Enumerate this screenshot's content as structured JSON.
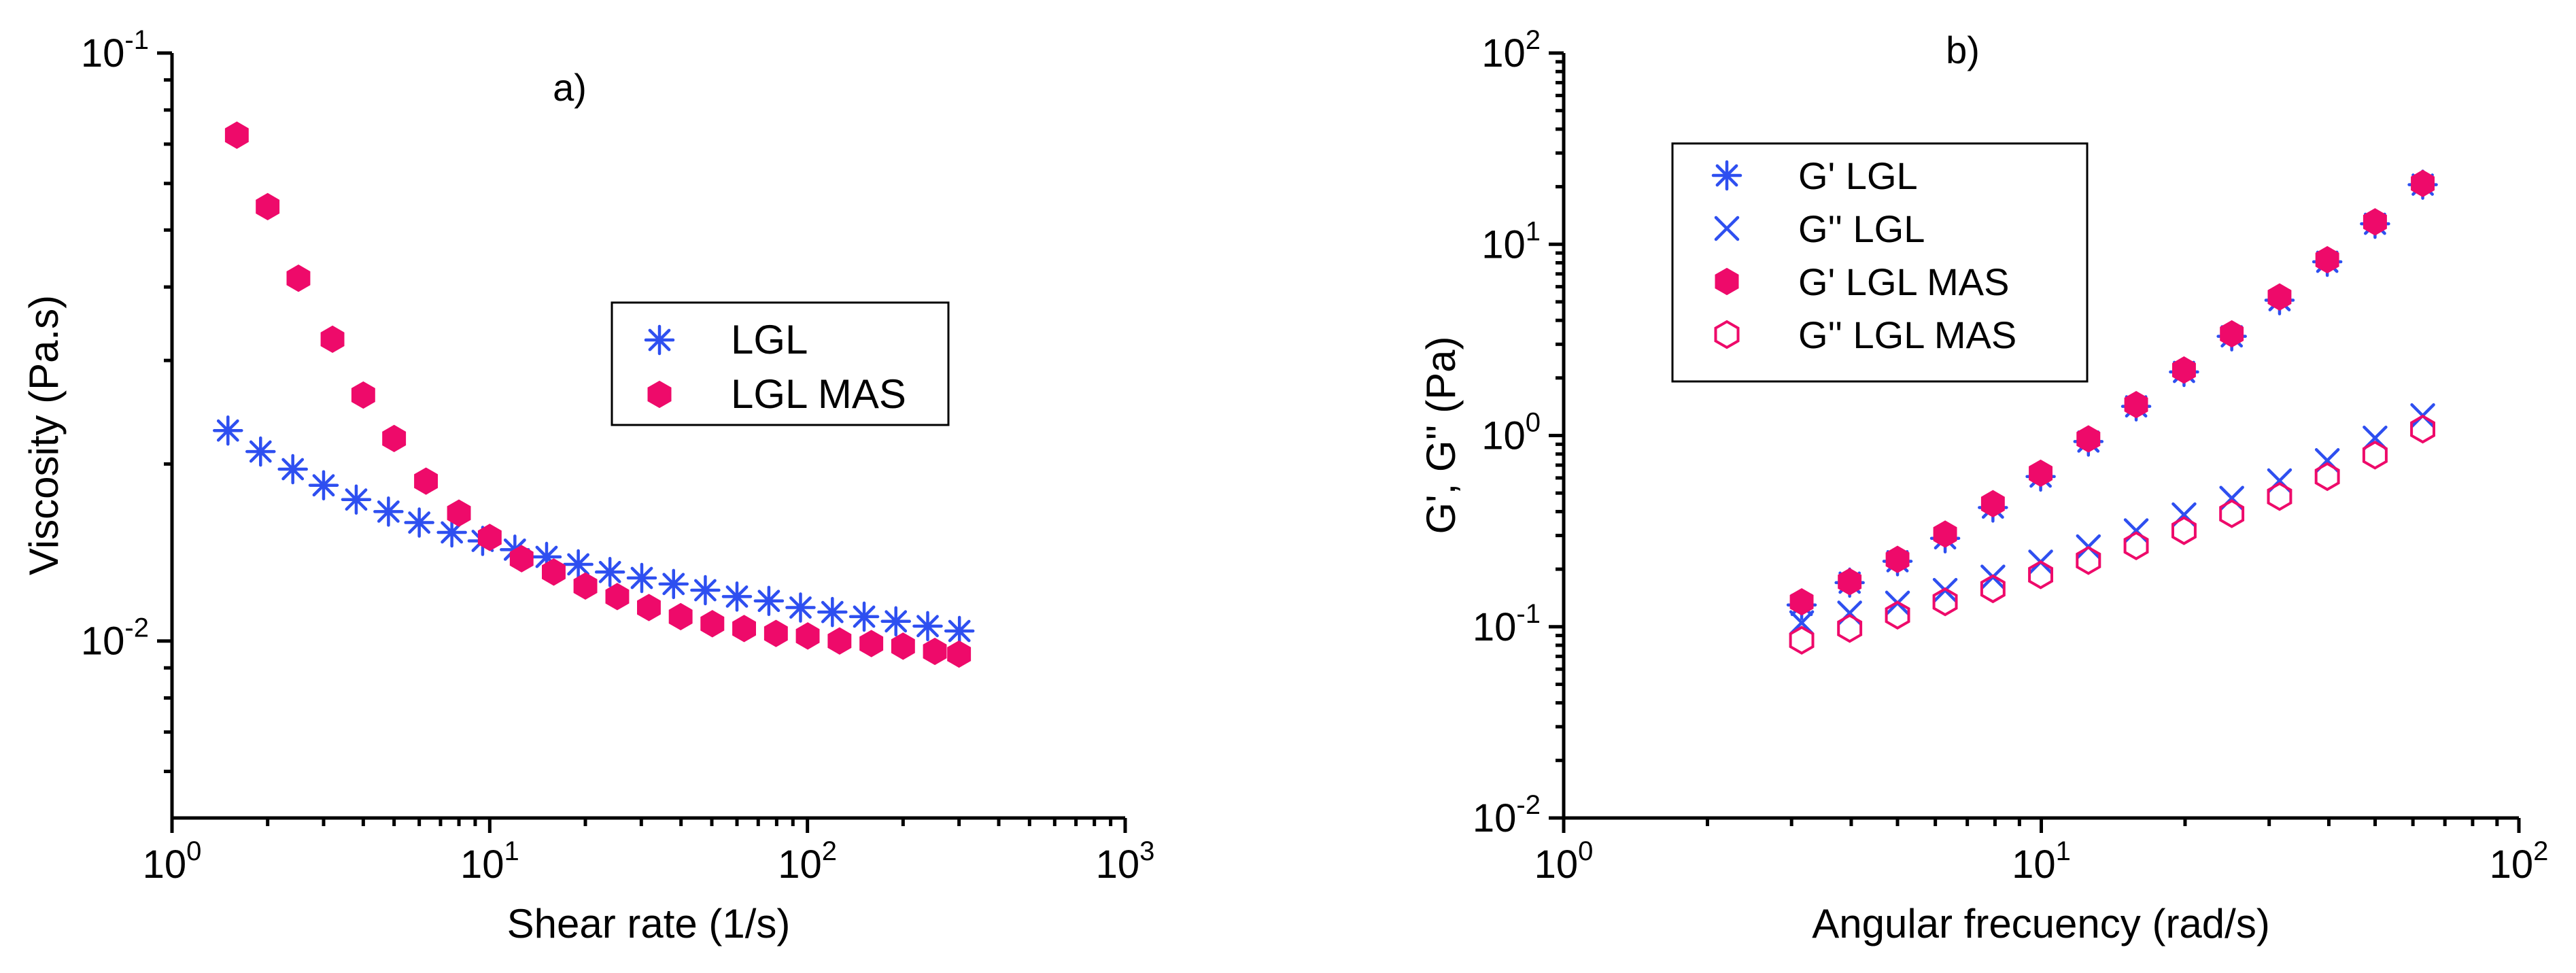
{
  "chart_data": [
    {
      "panel_label": "a)",
      "type": "scatter",
      "xscale": "log",
      "yscale": "log",
      "xlabel": "Shear rate (1/s)",
      "ylabel": "Viscosity (Pa.s)",
      "xlim": [
        1,
        1000
      ],
      "ylim": [
        0.005,
        0.1
      ],
      "xticks": [
        {
          "value": 1,
          "base": "10",
          "exp": "0"
        },
        {
          "value": 10,
          "base": "10",
          "exp": "1"
        },
        {
          "value": 100,
          "base": "10",
          "exp": "2"
        },
        {
          "value": 1000,
          "base": "10",
          "exp": "3"
        }
      ],
      "yticks": [
        {
          "value": 0.01,
          "base": "10",
          "exp": "-2"
        },
        {
          "value": 0.1,
          "base": "10",
          "exp": "-1"
        }
      ],
      "legend_position": "center-right",
      "series": [
        {
          "name": "LGL",
          "marker": "asterisk",
          "color": "#2e4ff0",
          "x": [
            1.5,
            1.9,
            2.4,
            3.0,
            3.8,
            4.8,
            6.0,
            7.6,
            9.5,
            12.0,
            15.1,
            19.0,
            23.9,
            30.1,
            37.9,
            47.7,
            60.0,
            75.6,
            95.1,
            119.8,
            150.8,
            189.8,
            239.0,
            300.8
          ],
          "y": [
            0.0228,
            0.021,
            0.0196,
            0.0184,
            0.0174,
            0.0166,
            0.0159,
            0.0153,
            0.0148,
            0.0143,
            0.0139,
            0.0135,
            0.0131,
            0.0128,
            0.0125,
            0.0122,
            0.0119,
            0.0117,
            0.0114,
            0.0112,
            0.011,
            0.0108,
            0.0106,
            0.0104
          ]
        },
        {
          "name": "LGL MAS",
          "marker": "filled-hexagon",
          "color": "#ee0a6a",
          "x": [
            1.6,
            2.0,
            2.5,
            3.2,
            4.0,
            5.0,
            6.3,
            8.0,
            10.0,
            12.6,
            15.9,
            20.0,
            25.2,
            31.7,
            39.9,
            50.2,
            63.2,
            79.6,
            100.2,
            126.2,
            158.9,
            200.0,
            251.8,
            300.0
          ],
          "y": [
            0.0725,
            0.0548,
            0.0414,
            0.0326,
            0.0262,
            0.0221,
            0.0187,
            0.0165,
            0.015,
            0.0138,
            0.0131,
            0.0124,
            0.0119,
            0.0114,
            0.011,
            0.0107,
            0.0105,
            0.0103,
            0.0102,
            0.01,
            0.0099,
            0.0098,
            0.0096,
            0.0095
          ]
        }
      ]
    },
    {
      "panel_label": "b)",
      "type": "scatter",
      "xscale": "log",
      "yscale": "log",
      "xlabel": "Angular frecuency (rad/s)",
      "ylabel": "G', G'' (Pa)",
      "xlim": [
        1,
        100
      ],
      "ylim": [
        0.01,
        100
      ],
      "xticks": [
        {
          "value": 1,
          "base": "10",
          "exp": "0"
        },
        {
          "value": 10,
          "base": "10",
          "exp": "1"
        },
        {
          "value": 100,
          "base": "10",
          "exp": "2"
        }
      ],
      "yticks": [
        {
          "value": 0.01,
          "base": "10",
          "exp": "-2"
        },
        {
          "value": 0.1,
          "base": "10",
          "exp": "-1"
        },
        {
          "value": 1,
          "base": "10",
          "exp": "0"
        },
        {
          "value": 10,
          "base": "10",
          "exp": "1"
        },
        {
          "value": 100,
          "base": "10",
          "exp": "2"
        }
      ],
      "legend_position": "top-left",
      "series": [
        {
          "name": "G' LGL",
          "marker": "asterisk",
          "color": "#2e4ff0",
          "x": [
            3.15,
            3.97,
            5.0,
            6.29,
            7.92,
            9.97,
            12.55,
            15.8,
            19.9,
            25.05,
            31.54,
            39.7,
            49.98,
            62.9
          ],
          "y": [
            0.13,
            0.17,
            0.22,
            0.29,
            0.42,
            0.61,
            0.93,
            1.42,
            2.15,
            3.3,
            5.1,
            8.1,
            12.8,
            20.5
          ]
        },
        {
          "name": "G'' LGL",
          "marker": "x",
          "color": "#2e4ff0",
          "x": [
            3.15,
            3.97,
            5.0,
            6.29,
            7.92,
            9.97,
            12.55,
            15.8,
            19.9,
            25.05,
            31.54,
            39.7,
            49.98,
            62.9
          ],
          "y": [
            0.105,
            0.118,
            0.133,
            0.155,
            0.182,
            0.218,
            0.262,
            0.318,
            0.385,
            0.47,
            0.58,
            0.74,
            0.97,
            1.27
          ]
        },
        {
          "name": "G' LGL MAS",
          "marker": "filled-hexagon",
          "color": "#ee0a6a",
          "x": [
            3.15,
            3.97,
            5.0,
            6.29,
            7.92,
            9.97,
            12.55,
            15.8,
            19.9,
            25.05,
            31.54,
            39.7,
            49.98,
            62.9
          ],
          "y": [
            0.135,
            0.172,
            0.225,
            0.305,
            0.44,
            0.635,
            0.96,
            1.45,
            2.2,
            3.4,
            5.3,
            8.3,
            13.1,
            20.8
          ]
        },
        {
          "name": "G'' LGL MAS",
          "marker": "hollow-hexagon",
          "color": "#ee0a6a",
          "x": [
            3.15,
            3.97,
            5.0,
            6.29,
            7.92,
            9.97,
            12.55,
            15.8,
            19.9,
            25.05,
            31.54,
            39.7,
            49.98,
            62.9
          ],
          "y": [
            0.085,
            0.098,
            0.115,
            0.135,
            0.158,
            0.187,
            0.222,
            0.265,
            0.318,
            0.39,
            0.48,
            0.61,
            0.79,
            1.08
          ]
        }
      ]
    }
  ]
}
